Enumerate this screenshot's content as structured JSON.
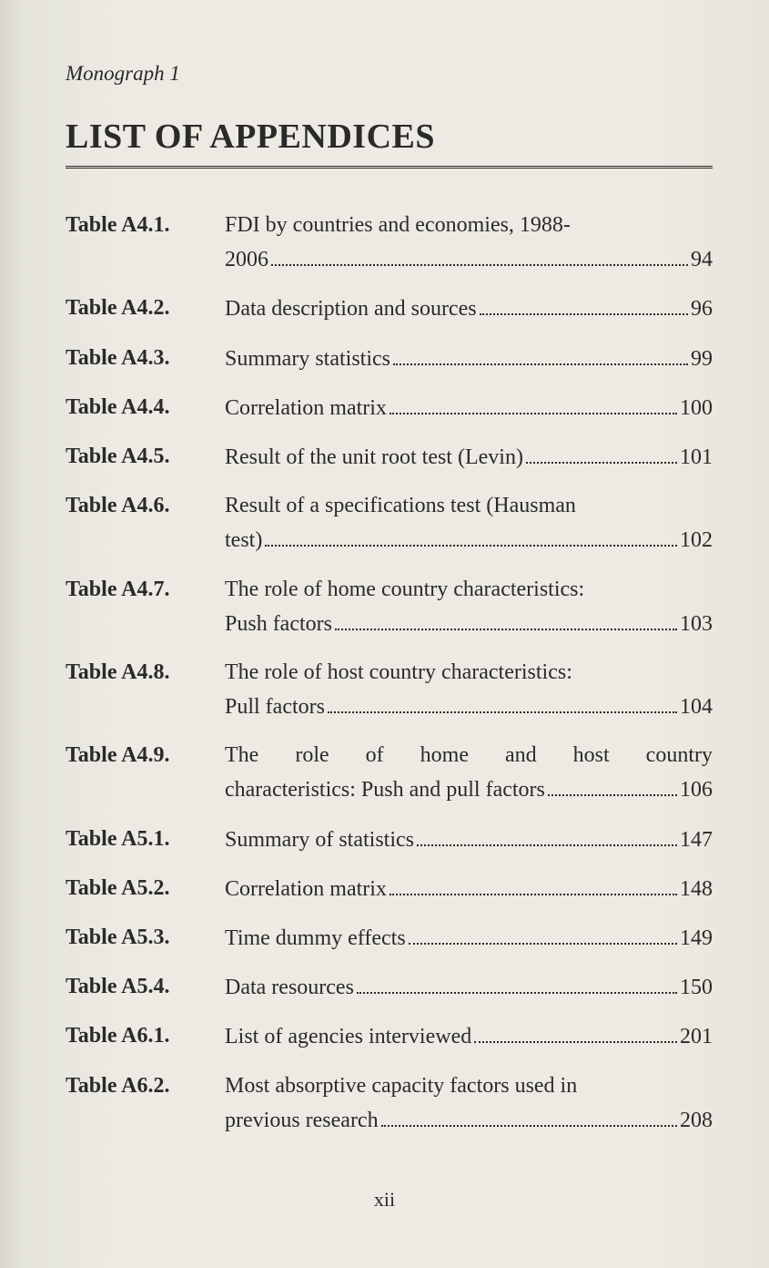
{
  "running_head": "Monograph 1",
  "title": "LIST OF APPENDICES",
  "folio": "xii",
  "text_color": "#2a2a2a",
  "background_color": "#eceae2",
  "title_fontsize": 38,
  "body_fontsize": 24,
  "entries": [
    {
      "label": "Table A4.1.",
      "lines": [
        "FDI by countries and economies, 1988-"
      ],
      "last_line": "2006",
      "page": "94",
      "justify": false
    },
    {
      "label": "Table A4.2.",
      "lines": [],
      "last_line": "Data description and sources",
      "page": "96",
      "justify": false
    },
    {
      "label": "Table A4.3.",
      "lines": [],
      "last_line": "Summary statistics",
      "page": "99",
      "justify": false
    },
    {
      "label": "Table A4.4.",
      "lines": [],
      "last_line": "Correlation matrix",
      "page": "100",
      "justify": false
    },
    {
      "label": "Table A4.5.",
      "lines": [],
      "last_line": "Result of the unit root test (Levin)",
      "page": "101",
      "justify": false
    },
    {
      "label": "Table A4.6.",
      "lines": [
        "Result of a specifications test (Hausman"
      ],
      "last_line": "test)",
      "page": "102",
      "justify": false
    },
    {
      "label": "Table A4.7.",
      "lines": [
        "The role of home country characteristics:"
      ],
      "last_line": "Push factors",
      "page": "103",
      "justify": false
    },
    {
      "label": "Table A4.8.",
      "lines": [
        "The role of host country characteristics:"
      ],
      "last_line": "Pull factors",
      "page": "104",
      "justify": false
    },
    {
      "label": "Table A4.9.",
      "lines": [
        "The role of home and host country"
      ],
      "last_line": "characteristics: Push and pull factors",
      "page": "106",
      "justify": true
    },
    {
      "label": "Table A5.1.",
      "lines": [],
      "last_line": "Summary of statistics",
      "page": "147",
      "justify": false
    },
    {
      "label": "Table A5.2.",
      "lines": [],
      "last_line": "Correlation matrix",
      "page": "148",
      "justify": false
    },
    {
      "label": "Table A5.3.",
      "lines": [],
      "last_line": "Time dummy effects",
      "page": "149",
      "justify": false
    },
    {
      "label": "Table A5.4.",
      "lines": [],
      "last_line": "Data resources",
      "page": "150",
      "justify": false
    },
    {
      "label": "Table A6.1.",
      "lines": [],
      "last_line": "List of agencies interviewed",
      "page": "201",
      "justify": false
    },
    {
      "label": "Table A6.2.",
      "lines": [
        "Most absorptive capacity factors used in"
      ],
      "last_line": "previous research",
      "page": "208",
      "justify": false
    }
  ]
}
